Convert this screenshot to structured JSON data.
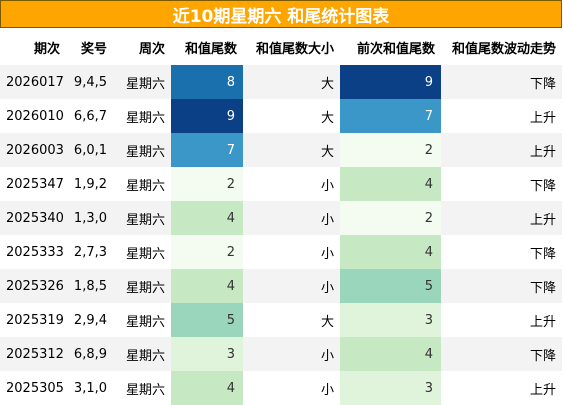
{
  "title": "近10期星期六 和尾统计图表",
  "headers": [
    "期次",
    "奖号",
    "周次",
    "和值尾数",
    "和值尾数大小",
    "前次和值尾数",
    "和值尾数波动走势"
  ],
  "rows": [
    {
      "period": "2026017",
      "numbers": "9,4,5",
      "weekday": "星期六",
      "tail": "8",
      "size": "大",
      "prev_tail": "9",
      "trend": "下降"
    },
    {
      "period": "2026010",
      "numbers": "6,6,7",
      "weekday": "星期六",
      "tail": "9",
      "size": "大",
      "prev_tail": "7",
      "trend": "上升"
    },
    {
      "period": "2026003",
      "numbers": "6,0,1",
      "weekday": "星期六",
      "tail": "7",
      "size": "大",
      "prev_tail": "2",
      "trend": "上升"
    },
    {
      "period": "2025347",
      "numbers": "1,9,2",
      "weekday": "星期六",
      "tail": "2",
      "size": "小",
      "prev_tail": "4",
      "trend": "下降"
    },
    {
      "period": "2025340",
      "numbers": "1,3,0",
      "weekday": "星期六",
      "tail": "4",
      "size": "小",
      "prev_tail": "2",
      "trend": "上升"
    },
    {
      "period": "2025333",
      "numbers": "2,7,3",
      "weekday": "星期六",
      "tail": "2",
      "size": "小",
      "prev_tail": "4",
      "trend": "下降"
    },
    {
      "period": "2025326",
      "numbers": "1,8,5",
      "weekday": "星期六",
      "tail": "4",
      "size": "小",
      "prev_tail": "5",
      "trend": "下降"
    },
    {
      "period": "2025319",
      "numbers": "2,9,4",
      "weekday": "星期六",
      "tail": "5",
      "size": "大",
      "prev_tail": "3",
      "trend": "上升"
    },
    {
      "period": "2025312",
      "numbers": "6,8,9",
      "weekday": "星期六",
      "tail": "3",
      "size": "小",
      "prev_tail": "4",
      "trend": "下降"
    },
    {
      "period": "2025305",
      "numbers": "3,1,0",
      "weekday": "星期六",
      "tail": "4",
      "size": "小",
      "prev_tail": "3",
      "trend": "上升"
    }
  ],
  "heat_colors": {
    "2": "#f4fbf1",
    "3": "#e0f3db",
    "4": "#c6e9c4",
    "5": "#9ad6bc",
    "7": "#3a97c7",
    "8": "#1a6fad",
    "9": "#0b3f86"
  },
  "heat_text_light": "#ffffff",
  "heat_text_dark": "#333333"
}
